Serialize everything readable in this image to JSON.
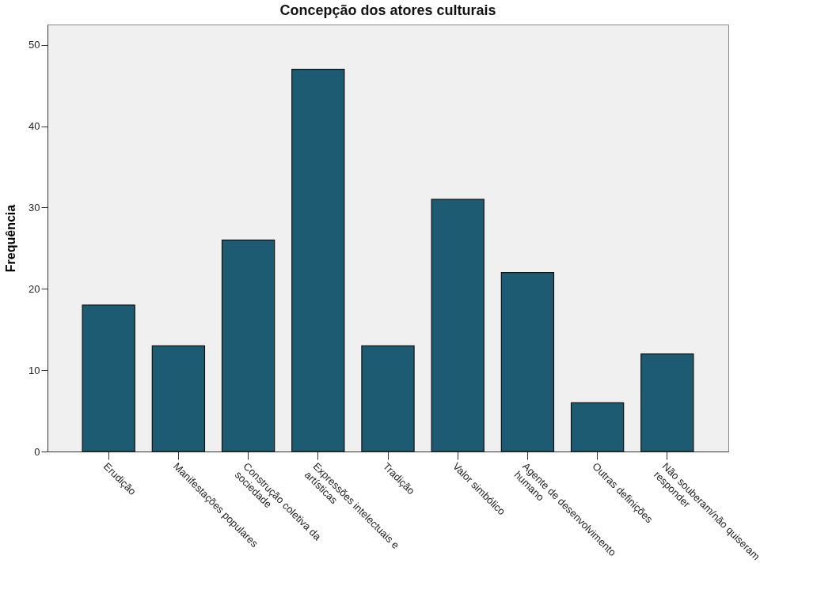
{
  "chart_data": {
    "type": "bar",
    "title": "Concepção dos atores culturais",
    "ylabel": "Frequência",
    "categories": [
      "Erudição",
      "Manifestações populares",
      "Construção coletiva da sociedade",
      "Expressões intelectuais e artísticas",
      "Tradição",
      "Valor simbólico",
      "Agente de desenvolvimento humano",
      "Outras definições",
      "Não souberam/não quiseram responder"
    ],
    "values": [
      18,
      13,
      26,
      47,
      13,
      31,
      22,
      6,
      12
    ],
    "color": "#1d5b72",
    "ylim": [
      0,
      52.5
    ],
    "yticks": [
      0,
      10,
      20,
      30,
      40,
      50
    ],
    "grid": false
  }
}
